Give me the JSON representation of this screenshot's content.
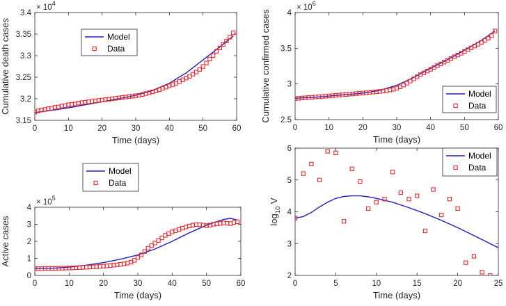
{
  "chart_data": [
    {
      "id": "death",
      "type": "line",
      "xlabel": "Time (days)",
      "ylabel": "Cumulative death cases",
      "xlim": [
        0,
        60
      ],
      "ylim": [
        3.15,
        3.4
      ],
      "xticks": [
        0,
        10,
        20,
        30,
        40,
        50,
        60
      ],
      "yticks": [
        3.15,
        3.2,
        3.25,
        3.3,
        3.35,
        3.4
      ],
      "ytick_labels": [
        "3.15",
        "3.2",
        "3.25",
        "3.3",
        "3.35",
        "3.4"
      ],
      "exponent_base": "× 10",
      "exponent": "4",
      "legend_position": "upper-left",
      "series": [
        {
          "name": "Model",
          "style": "line",
          "color": "#1f1fbf",
          "x": [
            0,
            5,
            10,
            15,
            20,
            25,
            30,
            35,
            40,
            45,
            50,
            55,
            59
          ],
          "values": [
            3.168,
            3.173,
            3.179,
            3.186,
            3.193,
            3.2,
            3.208,
            3.219,
            3.236,
            3.26,
            3.29,
            3.32,
            3.346
          ]
        },
        {
          "name": "Data",
          "style": "square-markers",
          "color": "#e8262d",
          "x": [
            0,
            1,
            2,
            3,
            4,
            5,
            6,
            7,
            8,
            9,
            10,
            11,
            12,
            13,
            14,
            15,
            16,
            17,
            18,
            19,
            20,
            21,
            22,
            23,
            24,
            25,
            26,
            27,
            28,
            29,
            30,
            31,
            32,
            33,
            34,
            35,
            36,
            37,
            38,
            39,
            40,
            41,
            42,
            43,
            44,
            45,
            46,
            47,
            48,
            49,
            50,
            51,
            52,
            53,
            54,
            55,
            56,
            57,
            58,
            59
          ],
          "values": [
            3.169,
            3.172,
            3.174,
            3.175,
            3.177,
            3.178,
            3.18,
            3.181,
            3.183,
            3.184,
            3.186,
            3.187,
            3.188,
            3.19,
            3.191,
            3.192,
            3.193,
            3.194,
            3.195,
            3.196,
            3.197,
            3.198,
            3.199,
            3.2,
            3.201,
            3.202,
            3.203,
            3.204,
            3.205,
            3.206,
            3.207,
            3.208,
            3.21,
            3.212,
            3.214,
            3.216,
            3.218,
            3.221,
            3.224,
            3.227,
            3.23,
            3.233,
            3.236,
            3.24,
            3.244,
            3.248,
            3.252,
            3.257,
            3.262,
            3.268,
            3.275,
            3.283,
            3.292,
            3.3,
            3.31,
            3.318,
            3.326,
            3.334,
            3.343,
            3.353
          ]
        }
      ]
    },
    {
      "id": "confirmed",
      "type": "line",
      "xlabel": "Time (days)",
      "ylabel": "Cumulative confirmed cases",
      "xlim": [
        0,
        60
      ],
      "ylim": [
        2.5,
        4.0
      ],
      "xticks": [
        0,
        10,
        20,
        30,
        40,
        50,
        60
      ],
      "yticks": [
        2.5,
        3.0,
        3.5,
        4.0
      ],
      "ytick_labels": [
        "2.5",
        "3",
        "3.5",
        "4"
      ],
      "exponent_base": "× 10",
      "exponent": "6",
      "legend_position": "lower-right",
      "series": [
        {
          "name": "Model",
          "style": "line",
          "color": "#1f1fbf",
          "x": [
            0,
            5,
            10,
            15,
            20,
            25,
            30,
            35,
            40,
            45,
            50,
            55,
            59
          ],
          "values": [
            2.8,
            2.81,
            2.83,
            2.85,
            2.87,
            2.91,
            2.98,
            3.09,
            3.22,
            3.34,
            3.47,
            3.61,
            3.74
          ]
        },
        {
          "name": "Data",
          "style": "square-markers",
          "color": "#e8262d",
          "x": [
            0,
            1,
            2,
            3,
            4,
            5,
            6,
            7,
            8,
            9,
            10,
            11,
            12,
            13,
            14,
            15,
            16,
            17,
            18,
            19,
            20,
            21,
            22,
            23,
            24,
            25,
            26,
            27,
            28,
            29,
            30,
            31,
            32,
            33,
            34,
            35,
            36,
            37,
            38,
            39,
            40,
            41,
            42,
            43,
            44,
            45,
            46,
            47,
            48,
            49,
            50,
            51,
            52,
            53,
            54,
            55,
            56,
            57,
            58,
            59
          ],
          "values": [
            2.795,
            2.798,
            2.802,
            2.806,
            2.81,
            2.813,
            2.817,
            2.82,
            2.824,
            2.828,
            2.832,
            2.836,
            2.84,
            2.844,
            2.848,
            2.852,
            2.856,
            2.86,
            2.864,
            2.868,
            2.872,
            2.876,
            2.88,
            2.885,
            2.89,
            2.895,
            2.9,
            2.907,
            2.915,
            2.925,
            2.94,
            2.96,
            2.985,
            3.01,
            3.04,
            3.07,
            3.1,
            3.13,
            3.155,
            3.18,
            3.205,
            3.23,
            3.255,
            3.28,
            3.305,
            3.33,
            3.355,
            3.38,
            3.405,
            3.43,
            3.455,
            3.48,
            3.505,
            3.53,
            3.555,
            3.58,
            3.61,
            3.64,
            3.675,
            3.74
          ]
        }
      ]
    },
    {
      "id": "active",
      "type": "line",
      "xlabel": "Time (days)",
      "ylabel": "Active cases",
      "xlim": [
        0,
        60
      ],
      "ylim": [
        0,
        4
      ],
      "xticks": [
        0,
        10,
        20,
        30,
        40,
        50,
        60
      ],
      "yticks": [
        0,
        1,
        2,
        3,
        4
      ],
      "ytick_labels": [
        "0",
        "1",
        "2",
        "3",
        "4"
      ],
      "exponent_base": "× 10",
      "exponent": "5",
      "legend_position": "upper-left",
      "series": [
        {
          "name": "Model",
          "style": "line",
          "color": "#1f1fbf",
          "x": [
            0,
            5,
            10,
            15,
            20,
            25,
            30,
            35,
            40,
            45,
            50,
            55,
            57,
            59
          ],
          "values": [
            0.4,
            0.42,
            0.48,
            0.6,
            0.75,
            0.95,
            1.2,
            1.55,
            2.0,
            2.5,
            2.95,
            3.28,
            3.35,
            3.25
          ]
        },
        {
          "name": "Data",
          "style": "square-markers",
          "color": "#e8262d",
          "x": [
            0,
            1,
            2,
            3,
            4,
            5,
            6,
            7,
            8,
            9,
            10,
            11,
            12,
            13,
            14,
            15,
            16,
            17,
            18,
            19,
            20,
            21,
            22,
            23,
            24,
            25,
            26,
            27,
            28,
            29,
            30,
            31,
            32,
            33,
            34,
            35,
            36,
            37,
            38,
            39,
            40,
            41,
            42,
            43,
            44,
            45,
            46,
            47,
            48,
            49,
            50,
            51,
            52,
            53,
            54,
            55,
            56,
            57,
            58,
            59
          ],
          "values": [
            0.4,
            0.4,
            0.4,
            0.41,
            0.41,
            0.41,
            0.41,
            0.42,
            0.42,
            0.43,
            0.43,
            0.44,
            0.45,
            0.46,
            0.47,
            0.48,
            0.49,
            0.5,
            0.51,
            0.53,
            0.54,
            0.56,
            0.58,
            0.6,
            0.62,
            0.65,
            0.68,
            0.72,
            0.78,
            0.88,
            1.05,
            1.2,
            1.4,
            1.6,
            1.75,
            1.9,
            2.05,
            2.2,
            2.35,
            2.45,
            2.55,
            2.62,
            2.7,
            2.77,
            2.84,
            2.9,
            2.95,
            2.98,
            2.98,
            2.95,
            2.92,
            2.95,
            3.0,
            3.03,
            3.05,
            3.08,
            3.06,
            3.04,
            3.1,
            3.15
          ]
        }
      ]
    },
    {
      "id": "viral",
      "type": "line",
      "xlabel": "Time (days)",
      "ylabel_main": "log",
      "ylabel_sub": "10",
      "ylabel_var": " V",
      "xlim": [
        0,
        25
      ],
      "ylim": [
        2,
        6
      ],
      "xticks": [
        0,
        5,
        10,
        15,
        20,
        25
      ],
      "yticks": [
        2,
        3,
        4,
        5,
        6
      ],
      "ytick_labels": [
        "2",
        "3",
        "4",
        "5",
        "6"
      ],
      "legend_position": "upper-right",
      "series": [
        {
          "name": "Model",
          "style": "line",
          "color": "#1f1fbf",
          "x": [
            0,
            1,
            2,
            3,
            4,
            5,
            6,
            7,
            8,
            9,
            10,
            12,
            14,
            16,
            18,
            20,
            22,
            25
          ],
          "values": [
            3.8,
            3.85,
            3.98,
            4.15,
            4.3,
            4.42,
            4.48,
            4.5,
            4.5,
            4.47,
            4.42,
            4.3,
            4.13,
            3.94,
            3.73,
            3.5,
            3.25,
            2.87
          ]
        },
        {
          "name": "Data",
          "style": "square-markers",
          "color": "#e8262d",
          "x": [
            0,
            1,
            2,
            3,
            4,
            5,
            6,
            7,
            8,
            9,
            10,
            11,
            12,
            13,
            14,
            15,
            16,
            17,
            18,
            19,
            20,
            21,
            22,
            23,
            24
          ],
          "values": [
            3.8,
            5.2,
            5.5,
            5.0,
            5.9,
            5.85,
            3.7,
            5.35,
            4.95,
            4.1,
            4.3,
            4.4,
            5.25,
            4.6,
            4.4,
            4.5,
            3.4,
            4.7,
            3.9,
            4.4,
            4.1,
            2.4,
            2.6,
            2.1,
            2.0
          ]
        }
      ]
    }
  ]
}
